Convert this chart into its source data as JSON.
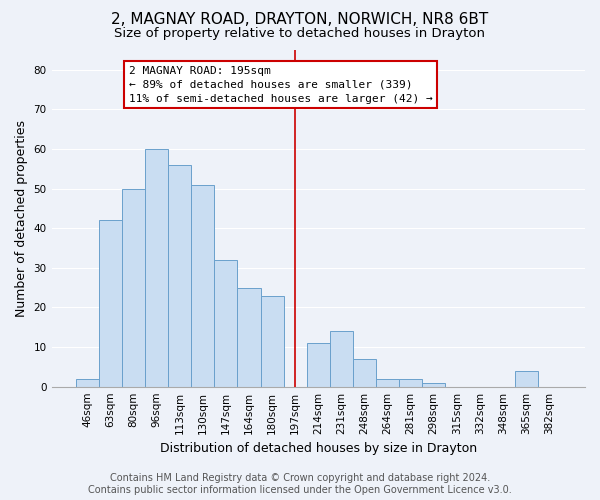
{
  "title": "2, MAGNAY ROAD, DRAYTON, NORWICH, NR8 6BT",
  "subtitle": "Size of property relative to detached houses in Drayton",
  "xlabel": "Distribution of detached houses by size in Drayton",
  "ylabel": "Number of detached properties",
  "bar_labels": [
    "46sqm",
    "63sqm",
    "80sqm",
    "96sqm",
    "113sqm",
    "130sqm",
    "147sqm",
    "164sqm",
    "180sqm",
    "197sqm",
    "214sqm",
    "231sqm",
    "248sqm",
    "264sqm",
    "281sqm",
    "298sqm",
    "315sqm",
    "332sqm",
    "348sqm",
    "365sqm",
    "382sqm"
  ],
  "bar_values": [
    2,
    42,
    50,
    60,
    56,
    51,
    32,
    25,
    23,
    0,
    11,
    14,
    7,
    2,
    2,
    1,
    0,
    0,
    0,
    4,
    0
  ],
  "bar_color": "#c9ddf2",
  "bar_edge_color": "#6aa0cc",
  "vline_x": 9,
  "vline_color": "#cc0000",
  "ylim": [
    0,
    85
  ],
  "yticks": [
    0,
    10,
    20,
    30,
    40,
    50,
    60,
    70,
    80
  ],
  "annotation_title": "2 MAGNAY ROAD: 195sqm",
  "annotation_line1": "← 89% of detached houses are smaller (339)",
  "annotation_line2": "11% of semi-detached houses are larger (42) →",
  "annotation_box_edge": "#cc0000",
  "footer1": "Contains HM Land Registry data © Crown copyright and database right 2024.",
  "footer2": "Contains public sector information licensed under the Open Government Licence v3.0.",
  "background_color": "#eef2f9",
  "plot_background": "#eef2f9",
  "grid_color": "#ffffff",
  "title_fontsize": 11,
  "subtitle_fontsize": 9.5,
  "axis_label_fontsize": 9,
  "tick_fontsize": 7.5,
  "footer_fontsize": 7,
  "annot_fontsize": 8
}
